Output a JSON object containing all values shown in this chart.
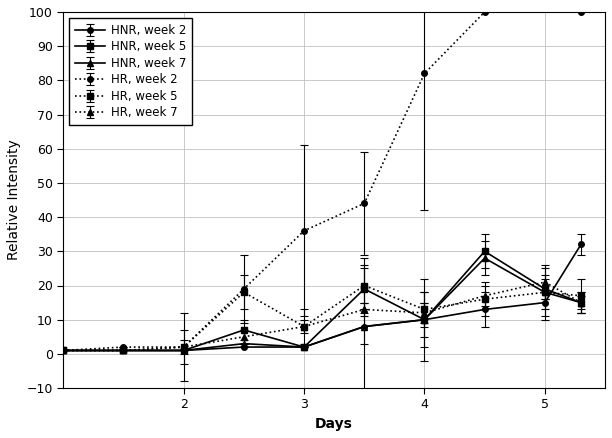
{
  "title": "",
  "xlabel": "Days",
  "ylabel": "Relative Intensity",
  "xlim": [
    1,
    5.5
  ],
  "ylim": [
    -10,
    100
  ],
  "yticks": [
    -10,
    0,
    10,
    20,
    30,
    40,
    50,
    60,
    70,
    80,
    90,
    100
  ],
  "xticks": [
    2,
    3,
    4,
    5
  ],
  "background_color": "#ffffff",
  "HNR_week2": {
    "x": [
      1.0,
      1.5,
      2.0,
      2.5,
      3.0,
      3.5,
      4.0,
      4.5,
      5.0,
      5.3
    ],
    "y": [
      1,
      1,
      1,
      2,
      2,
      8,
      10,
      13,
      15,
      32
    ],
    "yerr": [
      0,
      0,
      0,
      0,
      0,
      20,
      8,
      5,
      5,
      3
    ],
    "label": "HNR, week 2",
    "linestyle": "-",
    "marker": "o",
    "markersize": 4
  },
  "HNR_week5": {
    "x": [
      1.0,
      1.5,
      2.0,
      2.5,
      3.0,
      3.5,
      4.0,
      4.5,
      5.0,
      5.3
    ],
    "y": [
      1,
      1,
      1,
      7,
      2,
      19,
      10,
      30,
      19,
      15
    ],
    "yerr": [
      0,
      0,
      0,
      3,
      0,
      7,
      12,
      5,
      3,
      3
    ],
    "label": "HNR, week 5",
    "linestyle": "-",
    "marker": "s",
    "markersize": 4
  },
  "HNR_week7": {
    "x": [
      1.0,
      1.5,
      2.0,
      2.5,
      3.0,
      3.5,
      4.0,
      4.5,
      5.0,
      5.3
    ],
    "y": [
      1,
      1,
      1,
      3,
      2,
      8,
      10,
      28,
      18,
      15
    ],
    "yerr": [
      0,
      0,
      0,
      0,
      0,
      5,
      5,
      5,
      7,
      2
    ],
    "label": "HNR, week 7",
    "linestyle": "-",
    "marker": "^",
    "markersize": 4
  },
  "HR_week2": {
    "x": [
      1.0,
      1.5,
      2.0,
      2.5,
      3.0,
      3.5,
      4.0,
      4.5,
      5.3
    ],
    "y": [
      1,
      2,
      2,
      19,
      36,
      44,
      82,
      100,
      100
    ],
    "yerr": [
      0,
      0,
      10,
      10,
      25,
      15,
      40,
      0,
      0
    ],
    "label": "HR, week 2",
    "linestyle": ":",
    "marker": "o",
    "markersize": 4
  },
  "HR_week5": {
    "x": [
      1.0,
      1.5,
      2.0,
      2.5,
      3.0,
      3.5,
      4.0,
      4.5,
      5.0,
      5.3
    ],
    "y": [
      1,
      1,
      2,
      18,
      8,
      20,
      13,
      16,
      18,
      17
    ],
    "yerr": [
      0,
      0,
      5,
      5,
      5,
      5,
      5,
      5,
      5,
      5
    ],
    "label": "HR, week 5",
    "linestyle": ":",
    "marker": "s",
    "markersize": 4
  },
  "HR_week7": {
    "x": [
      1.0,
      1.5,
      2.0,
      2.5,
      3.0,
      3.5,
      4.0,
      4.5,
      5.0,
      5.3
    ],
    "y": [
      1,
      1,
      2,
      5,
      8,
      13,
      12,
      17,
      21,
      15
    ],
    "yerr": [
      0,
      0,
      2,
      2,
      2,
      2,
      3,
      3,
      5,
      3
    ],
    "label": "HR, week 7",
    "linestyle": ":",
    "marker": "^",
    "markersize": 4
  }
}
